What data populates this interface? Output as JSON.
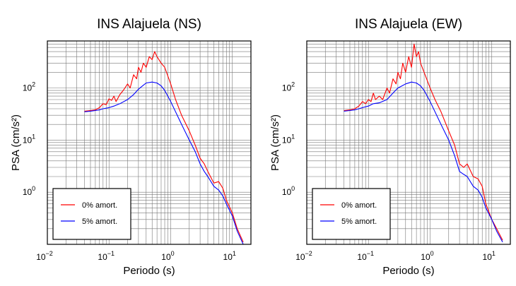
{
  "chart_data": [
    {
      "type": "line",
      "title": "INS Alajuela (NS)",
      "xlabel": "Periodo (s)",
      "ylabel": "PSA (cm/s²)",
      "x_scale": "log",
      "y_scale": "log",
      "xlim": [
        0.01,
        20
      ],
      "ylim": [
        0.1,
        800
      ],
      "x_ticks": [
        {
          "base": "10",
          "exp": "−2"
        },
        {
          "base": "10",
          "exp": "−1"
        },
        {
          "base": "10",
          "exp": "0"
        },
        {
          "base": "10",
          "exp": "1"
        }
      ],
      "y_ticks": [
        {
          "base": "10",
          "exp": "0"
        },
        {
          "base": "10",
          "exp": "1"
        },
        {
          "base": "10",
          "exp": "2"
        }
      ],
      "grid": true,
      "legend_position": "bottom-left",
      "series": [
        {
          "name": "0% amort.",
          "color": "#ff0000",
          "points": [
            [
              0.04,
              36
            ],
            [
              0.05,
              37
            ],
            [
              0.06,
              38
            ],
            [
              0.07,
              42
            ],
            [
              0.08,
              50
            ],
            [
              0.09,
              48
            ],
            [
              0.1,
              62
            ],
            [
              0.11,
              58
            ],
            [
              0.12,
              70
            ],
            [
              0.13,
              55
            ],
            [
              0.15,
              75
            ],
            [
              0.17,
              90
            ],
            [
              0.2,
              120
            ],
            [
              0.22,
              100
            ],
            [
              0.25,
              180
            ],
            [
              0.28,
              150
            ],
            [
              0.3,
              250
            ],
            [
              0.33,
              200
            ],
            [
              0.36,
              300
            ],
            [
              0.4,
              250
            ],
            [
              0.45,
              400
            ],
            [
              0.5,
              350
            ],
            [
              0.55,
              500
            ],
            [
              0.6,
              400
            ],
            [
              0.7,
              300
            ],
            [
              0.8,
              250
            ],
            [
              1.0,
              120
            ],
            [
              1.2,
              60
            ],
            [
              1.5,
              30
            ],
            [
              2.0,
              15
            ],
            [
              2.5,
              8
            ],
            [
              3.0,
              4.5
            ],
            [
              3.5,
              3.5
            ],
            [
              4.0,
              2.5
            ],
            [
              5.0,
              1.5
            ],
            [
              6.0,
              1.6
            ],
            [
              7.0,
              1.2
            ],
            [
              8.0,
              0.7
            ],
            [
              10,
              0.4
            ],
            [
              12,
              0.2
            ],
            [
              15,
              0.11
            ]
          ]
        },
        {
          "name": "5% amort.",
          "color": "#0000ff",
          "points": [
            [
              0.04,
              35
            ],
            [
              0.05,
              36
            ],
            [
              0.06,
              37
            ],
            [
              0.07,
              38
            ],
            [
              0.08,
              40
            ],
            [
              0.1,
              42
            ],
            [
              0.12,
              45
            ],
            [
              0.15,
              50
            ],
            [
              0.2,
              60
            ],
            [
              0.25,
              75
            ],
            [
              0.3,
              95
            ],
            [
              0.35,
              110
            ],
            [
              0.4,
              125
            ],
            [
              0.5,
              130
            ],
            [
              0.6,
              125
            ],
            [
              0.7,
              110
            ],
            [
              0.8,
              90
            ],
            [
              1.0,
              55
            ],
            [
              1.2,
              35
            ],
            [
              1.5,
              20
            ],
            [
              2.0,
              10
            ],
            [
              2.5,
              6
            ],
            [
              3.0,
              3.5
            ],
            [
              3.5,
              2.5
            ],
            [
              4.0,
              2.0
            ],
            [
              5.0,
              1.3
            ],
            [
              6.0,
              1.1
            ],
            [
              7.0,
              0.85
            ],
            [
              8.0,
              0.6
            ],
            [
              10,
              0.35
            ],
            [
              12,
              0.18
            ],
            [
              15,
              0.1
            ]
          ]
        }
      ]
    },
    {
      "type": "line",
      "title": "INS Alajuela (EW)",
      "xlabel": "Periodo (s)",
      "ylabel": "PSA (cm/s²)",
      "x_scale": "log",
      "y_scale": "log",
      "xlim": [
        0.01,
        20
      ],
      "ylim": [
        0.1,
        800
      ],
      "x_ticks": [
        {
          "base": "10",
          "exp": "−2"
        },
        {
          "base": "10",
          "exp": "−1"
        },
        {
          "base": "10",
          "exp": "0"
        },
        {
          "base": "10",
          "exp": "1"
        }
      ],
      "y_ticks": [
        {
          "base": "10",
          "exp": "0"
        },
        {
          "base": "10",
          "exp": "1"
        },
        {
          "base": "10",
          "exp": "2"
        }
      ],
      "grid": true,
      "legend_position": "bottom-left",
      "series": [
        {
          "name": "0% amort.",
          "color": "#ff0000",
          "points": [
            [
              0.04,
              37
            ],
            [
              0.05,
              38
            ],
            [
              0.06,
              40
            ],
            [
              0.07,
              45
            ],
            [
              0.08,
              55
            ],
            [
              0.09,
              50
            ],
            [
              0.1,
              60
            ],
            [
              0.11,
              55
            ],
            [
              0.12,
              80
            ],
            [
              0.13,
              60
            ],
            [
              0.15,
              70
            ],
            [
              0.17,
              60
            ],
            [
              0.2,
              100
            ],
            [
              0.22,
              80
            ],
            [
              0.25,
              150
            ],
            [
              0.28,
              120
            ],
            [
              0.3,
              200
            ],
            [
              0.33,
              150
            ],
            [
              0.36,
              300
            ],
            [
              0.4,
              200
            ],
            [
              0.45,
              400
            ],
            [
              0.5,
              250
            ],
            [
              0.55,
              700
            ],
            [
              0.6,
              400
            ],
            [
              0.65,
              500
            ],
            [
              0.7,
              300
            ],
            [
              0.8,
              200
            ],
            [
              1.0,
              100
            ],
            [
              1.2,
              60
            ],
            [
              1.5,
              35
            ],
            [
              2.0,
              15
            ],
            [
              2.5,
              8
            ],
            [
              3.0,
              3.5
            ],
            [
              3.5,
              3.0
            ],
            [
              4.0,
              3.5
            ],
            [
              5.0,
              2.0
            ],
            [
              6.0,
              1.8
            ],
            [
              7.0,
              1.3
            ],
            [
              8.0,
              0.6
            ],
            [
              10,
              0.3
            ],
            [
              12,
              0.2
            ],
            [
              15,
              0.12
            ]
          ]
        },
        {
          "name": "5% amort.",
          "color": "#0000ff",
          "points": [
            [
              0.04,
              36
            ],
            [
              0.05,
              37
            ],
            [
              0.06,
              38
            ],
            [
              0.07,
              40
            ],
            [
              0.08,
              42
            ],
            [
              0.1,
              45
            ],
            [
              0.12,
              50
            ],
            [
              0.15,
              52
            ],
            [
              0.2,
              60
            ],
            [
              0.25,
              80
            ],
            [
              0.3,
              100
            ],
            [
              0.35,
              110
            ],
            [
              0.4,
              120
            ],
            [
              0.5,
              130
            ],
            [
              0.6,
              125
            ],
            [
              0.7,
              110
            ],
            [
              0.8,
              90
            ],
            [
              1.0,
              55
            ],
            [
              1.2,
              35
            ],
            [
              1.5,
              20
            ],
            [
              2.0,
              10
            ],
            [
              2.5,
              5
            ],
            [
              3.0,
              2.5
            ],
            [
              3.5,
              2.2
            ],
            [
              4.0,
              2.0
            ],
            [
              5.0,
              1.3
            ],
            [
              6.0,
              1.1
            ],
            [
              7.0,
              0.8
            ],
            [
              8.0,
              0.5
            ],
            [
              10,
              0.3
            ],
            [
              12,
              0.18
            ],
            [
              15,
              0.11
            ]
          ]
        }
      ]
    }
  ]
}
